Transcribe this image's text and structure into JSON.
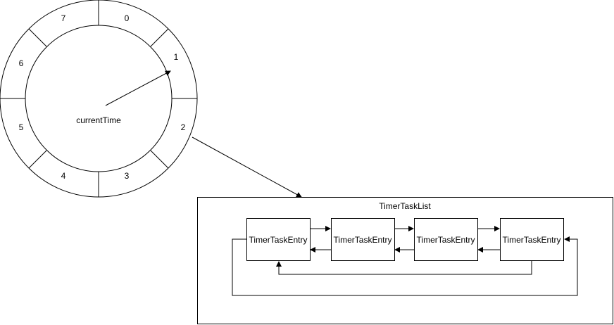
{
  "wheel": {
    "slots": [
      {
        "label": "0"
      },
      {
        "label": "1"
      },
      {
        "label": "2"
      },
      {
        "label": "3"
      },
      {
        "label": "4"
      },
      {
        "label": "5"
      },
      {
        "label": "6"
      },
      {
        "label": "7"
      }
    ],
    "hand_label": "currentTime"
  },
  "task_list": {
    "title": "TimerTaskList",
    "entries": [
      {
        "label": "TimerTaskEntry"
      },
      {
        "label": "TimerTaskEntry"
      },
      {
        "label": "TimerTaskEntry"
      },
      {
        "label": "TimerTaskEntry"
      }
    ]
  },
  "colors": {
    "stroke": "#000000",
    "background": "#ffffff"
  }
}
